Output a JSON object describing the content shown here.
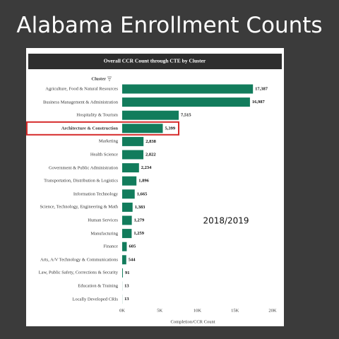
{
  "slide_title": "Alabama Enrollment Counts",
  "chart_data": {
    "type": "hbar",
    "title": "Overall CCR Count through CTE by Cluster",
    "y_label": "Cluster",
    "x_label": "Completion/CCR Count",
    "annotation": "2018/2019",
    "categories": [
      "Agriculture, Food & Natural Resources",
      "Business Management & Administration",
      "Hospitality & Tourism",
      "Architecture & Construction",
      "Marketing",
      "Health Science",
      "Government & Public Administration",
      "Transportation, Distribution & Logistics",
      "Information Technology",
      "Science, Technology, Engineering & Math",
      "Human Services",
      "Manufacturing",
      "Finance",
      "Arts, A/V Technology & Communications",
      "Law, Public Safety, Corrections & Security",
      "Education & Training",
      "Locally Developed CRIs"
    ],
    "values": [
      17387,
      16987,
      7515,
      5399,
      2838,
      2822,
      2234,
      1896,
      1665,
      1383,
      1279,
      1259,
      605,
      544,
      91,
      13,
      13
    ],
    "value_labels": [
      "17,387",
      "16,987",
      "7,515",
      "5,399",
      "2,838",
      "2,822",
      "2,234",
      "1,896",
      "1,665",
      "1,383",
      "1,279",
      "1,259",
      "605",
      "544",
      "91",
      "13",
      "13"
    ],
    "color": "#127c5c",
    "highlight": "Architecture & Construction",
    "xlim": [
      0,
      20000
    ],
    "xticks": [
      {
        "value": 0,
        "label": "0K"
      },
      {
        "value": 5000,
        "label": "5K"
      },
      {
        "value": 10000,
        "label": "10K"
      },
      {
        "value": 15000,
        "label": "15K"
      },
      {
        "value": 20000,
        "label": "20K"
      }
    ]
  }
}
